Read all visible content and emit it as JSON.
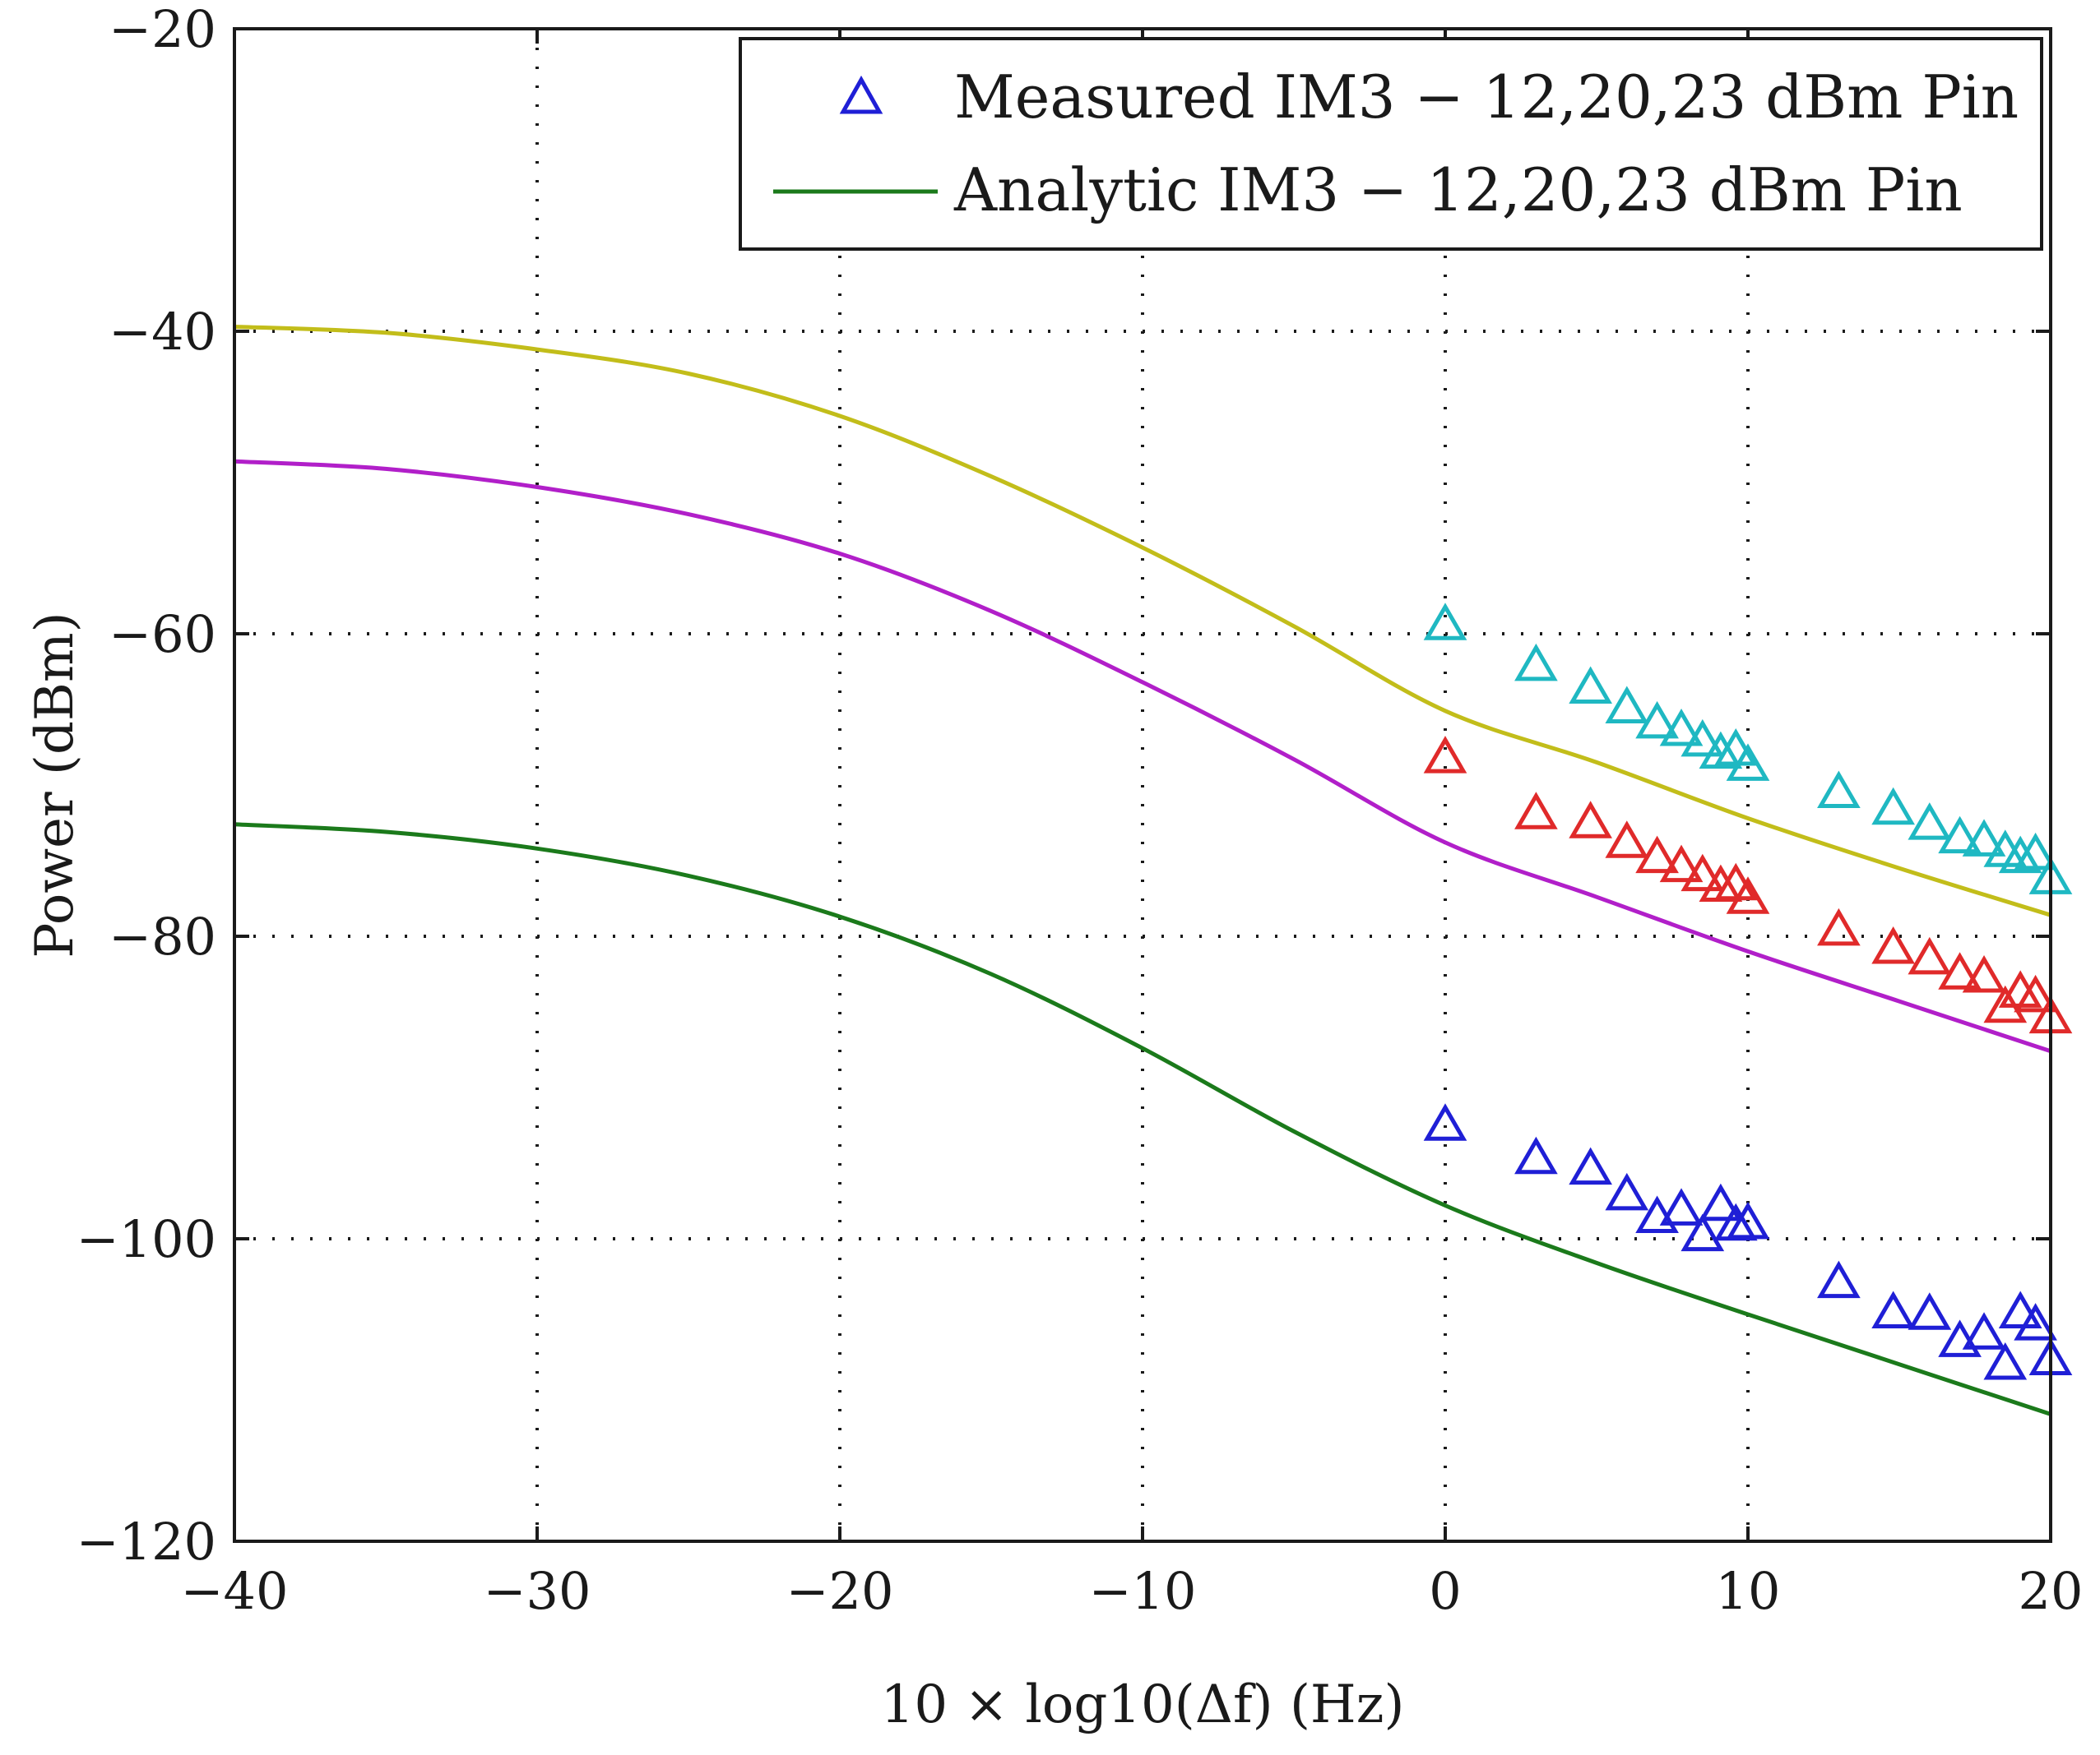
{
  "chart_data": {
    "type": "line",
    "title": "",
    "xlabel": "10 × log10(Δf) (Hz)",
    "ylabel": "Power (dBm)",
    "xlim": [
      -40,
      20
    ],
    "ylim": [
      -120,
      -20
    ],
    "x_ticks": [
      -40,
      -30,
      -20,
      -10,
      0,
      10,
      20
    ],
    "y_ticks": [
      -120,
      -100,
      -80,
      -60,
      -40,
      -20
    ],
    "x_tick_labels": [
      "−40",
      "−30",
      "−20",
      "−10",
      "0",
      "10",
      "20"
    ],
    "y_tick_labels": [
      "−120",
      "−100",
      "−80",
      "−60",
      "−40",
      "−20"
    ],
    "grid": true,
    "legend": {
      "placement": "top-right",
      "entries": [
        {
          "label": "Measured IM3 − 12,20,23 dBm Pin",
          "marker": "triangle",
          "color": "#1f1fd6"
        },
        {
          "label": "Analytic IM3 − 12,20,23 dBm Pin",
          "marker": "line",
          "color": "#1b7a1b"
        }
      ]
    },
    "series": [
      {
        "name": "Analytic IM3 − 23 dBm Pin",
        "kind": "line",
        "color": "#c2bd1a",
        "x": [
          -40,
          -35,
          -30,
          -25,
          -20,
          -15,
          -10,
          -5,
          0,
          5,
          10,
          15,
          20
        ],
        "y": [
          -39.7,
          -40.1,
          -41.2,
          -42.8,
          -45.6,
          -49.6,
          -54.3,
          -59.5,
          -65.1,
          -68.5,
          -72.2,
          -75.5,
          -78.6
        ]
      },
      {
        "name": "Analytic IM3 − 20 dBm Pin",
        "kind": "line",
        "color": "#b11fc9",
        "x": [
          -40,
          -35,
          -30,
          -25,
          -20,
          -15,
          -10,
          -5,
          0,
          5,
          10,
          15,
          20
        ],
        "y": [
          -48.6,
          -49.1,
          -50.3,
          -52.1,
          -54.7,
          -58.5,
          -63.2,
          -68.3,
          -73.8,
          -77.4,
          -81.0,
          -84.3,
          -87.6
        ]
      },
      {
        "name": "Analytic IM3 − 12 dBm Pin",
        "kind": "line",
        "color": "#1b7a1b",
        "x": [
          -40,
          -35,
          -30,
          -25,
          -20,
          -15,
          -10,
          -5,
          0,
          5,
          10,
          15,
          20
        ],
        "y": [
          -72.6,
          -73.1,
          -74.2,
          -76.0,
          -78.7,
          -82.5,
          -87.4,
          -92.9,
          -97.8,
          -101.6,
          -105.0,
          -108.3,
          -111.6
        ]
      },
      {
        "name": "Measured IM3 − 23 dBm Pin",
        "kind": "scatter",
        "color": "#1fb8c2",
        "x": [
          0,
          3,
          4.8,
          6,
          7,
          7.8,
          8.5,
          9.1,
          9.6,
          10,
          13,
          14.8,
          16,
          17,
          17.8,
          18.5,
          19,
          19.5,
          20
        ],
        "y": [
          -59.5,
          -62.2,
          -63.7,
          -65.0,
          -66.0,
          -66.5,
          -67.2,
          -68.0,
          -67.8,
          -68.8,
          -70.6,
          -71.7,
          -72.7,
          -73.6,
          -73.8,
          -74.5,
          -74.9,
          -74.7,
          -76.3
        ]
      },
      {
        "name": "Measured IM3 − 20 dBm Pin",
        "kind": "scatter",
        "color": "#e02a2a",
        "x": [
          0,
          3,
          4.8,
          6,
          7,
          7.8,
          8.5,
          9.1,
          9.6,
          10,
          13,
          14.8,
          16,
          17,
          17.8,
          18.5,
          19,
          19.5,
          20
        ],
        "y": [
          -68.3,
          -72.0,
          -72.6,
          -73.9,
          -74.9,
          -75.5,
          -76.1,
          -76.8,
          -76.7,
          -77.6,
          -79.7,
          -80.9,
          -81.6,
          -82.6,
          -82.8,
          -84.8,
          -83.8,
          -84.1,
          -85.5
        ]
      },
      {
        "name": "Measured IM3 − 12 dBm Pin",
        "kind": "scatter",
        "color": "#1f1fd6",
        "x": [
          0,
          3,
          4.8,
          6,
          7,
          7.8,
          8.5,
          9.1,
          9.6,
          10,
          13,
          14.8,
          16,
          17,
          17.8,
          18.5,
          19,
          19.5,
          20
        ],
        "y": [
          -92.6,
          -94.8,
          -95.5,
          -97.2,
          -98.7,
          -98.2,
          -99.9,
          -97.9,
          -99.2,
          -99.1,
          -103.0,
          -105.0,
          -105.1,
          -106.9,
          -106.4,
          -108.4,
          -105.0,
          -105.8,
          -108.1
        ]
      }
    ]
  }
}
